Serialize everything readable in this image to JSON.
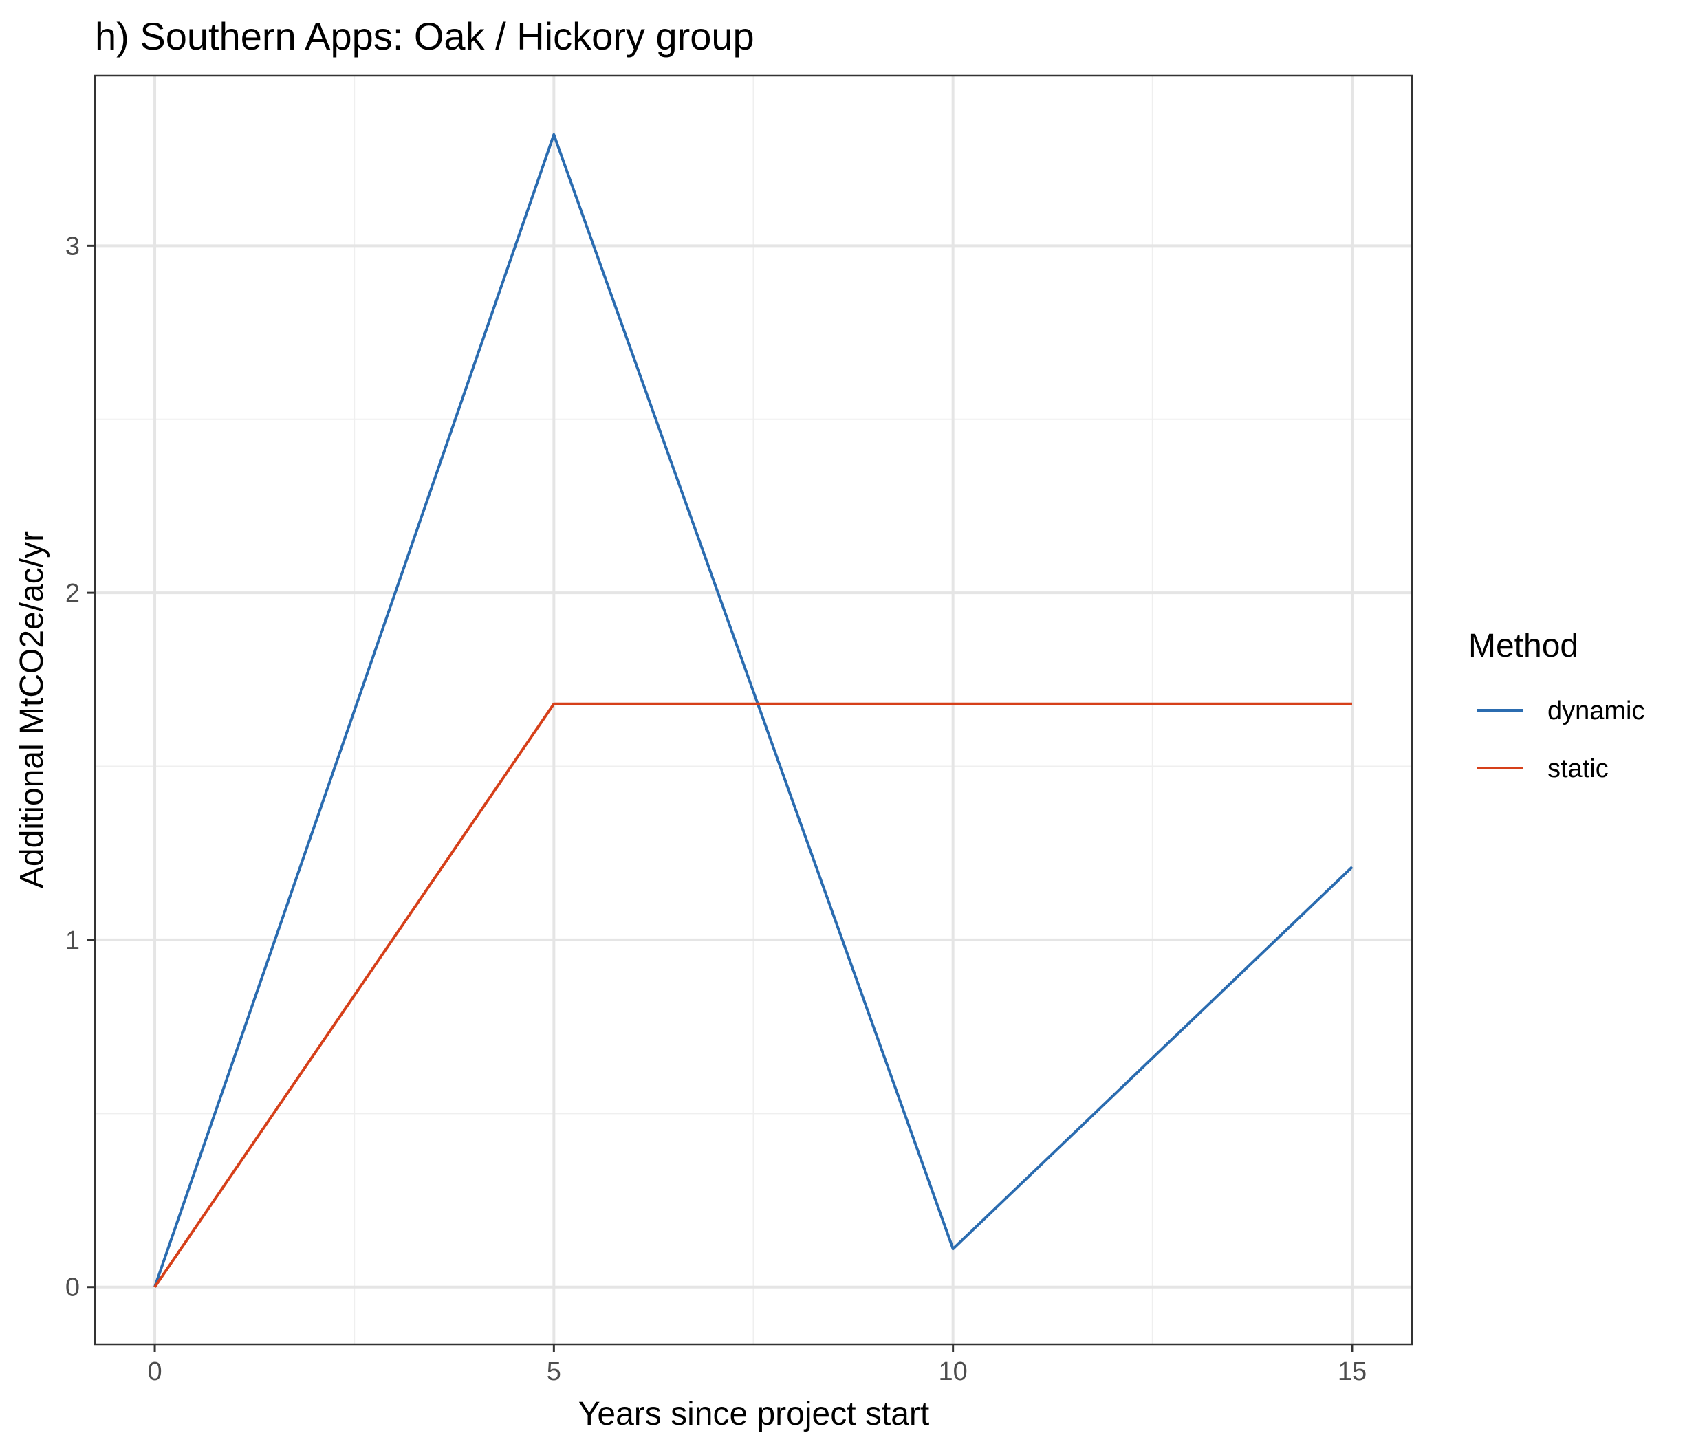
{
  "chart_data": {
    "type": "line",
    "title": "h) Southern Apps: Oak / Hickory group",
    "xlabel": "Years since project start",
    "ylabel": "Additional MtCO2e/ac/yr",
    "x": [
      0,
      5,
      10,
      15
    ],
    "xlim": [
      -0.75,
      15.75
    ],
    "ylim": [
      -0.165,
      3.49
    ],
    "x_ticks": [
      0,
      5,
      10,
      15
    ],
    "x_tick_labels": [
      "0",
      "5",
      "10",
      "15"
    ],
    "y_ticks": [
      0,
      1,
      2,
      3
    ],
    "y_tick_labels": [
      "0",
      "1",
      "2",
      "3"
    ],
    "x_minor": [
      2.5,
      7.5,
      12.5
    ],
    "y_minor": [
      0.5,
      1.5,
      2.5
    ],
    "grid": true,
    "legend": {
      "title": "Method",
      "position": "right"
    },
    "series": [
      {
        "name": "dynamic",
        "color": "#2b6cb0",
        "values": [
          0,
          3.32,
          0.11,
          1.21
        ]
      },
      {
        "name": "static",
        "color": "#d6401a",
        "values": [
          0,
          1.68,
          1.68,
          1.68
        ]
      }
    ]
  }
}
